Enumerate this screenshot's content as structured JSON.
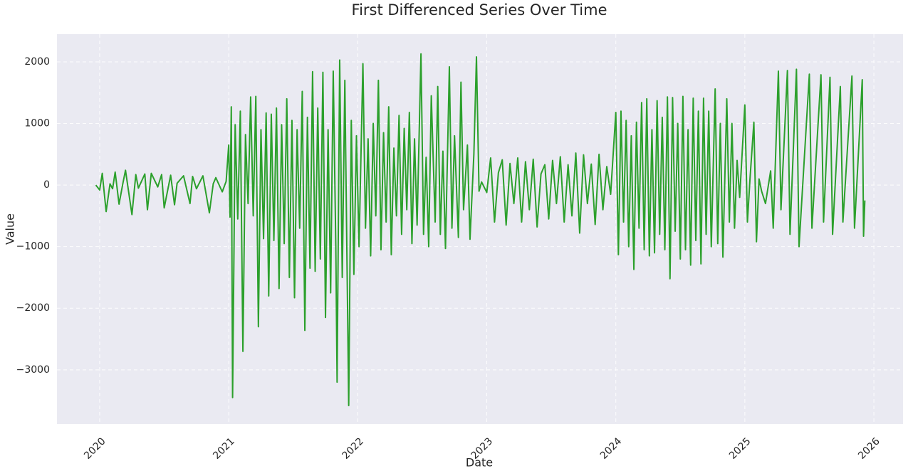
{
  "chart_data": {
    "type": "line",
    "title": "First Differenced Series Over Time",
    "x_label": "Date",
    "y_label": "Value",
    "color": "#2ca02c",
    "grid": true,
    "xlim": [
      2019.669,
      2026.226
    ],
    "xticks": [
      2020,
      2021,
      2022,
      2023,
      2024,
      2025,
      2026
    ],
    "ylim": [
      -3880,
      2450
    ],
    "yticks": [
      {
        "value": -3000,
        "label": "−3000"
      },
      {
        "value": -2000,
        "label": "−2000"
      },
      {
        "value": -1000,
        "label": "−1000"
      },
      0,
      1000,
      2000
    ],
    "x": [
      2019.97,
      2020.0,
      2020.02,
      2020.05,
      2020.08,
      2020.1,
      2020.12,
      2020.15,
      2020.18,
      2020.2,
      2020.25,
      2020.28,
      2020.3,
      2020.35,
      2020.37,
      2020.4,
      2020.45,
      2020.48,
      2020.5,
      2020.55,
      2020.58,
      2020.6,
      2020.65,
      2020.7,
      2020.72,
      2020.75,
      2020.8,
      2020.85,
      2020.88,
      2020.9,
      2020.95,
      2020.98,
      2021.0,
      2021.01,
      2021.02,
      2021.03,
      2021.05,
      2021.07,
      2021.09,
      2021.11,
      2021.13,
      2021.15,
      2021.17,
      2021.19,
      2021.21,
      2021.23,
      2021.25,
      2021.27,
      2021.29,
      2021.31,
      2021.33,
      2021.35,
      2021.37,
      2021.39,
      2021.41,
      2021.43,
      2021.45,
      2021.47,
      2021.49,
      2021.51,
      2021.53,
      2021.55,
      2021.57,
      2021.59,
      2021.61,
      2021.63,
      2021.65,
      2021.67,
      2021.69,
      2021.71,
      2021.73,
      2021.75,
      2021.77,
      2021.79,
      2021.81,
      2021.83,
      2021.84,
      2021.86,
      2021.88,
      2021.9,
      2021.93,
      2021.95,
      2021.97,
      2021.99,
      2022.01,
      2022.04,
      2022.06,
      2022.08,
      2022.1,
      2022.12,
      2022.14,
      2022.16,
      2022.18,
      2022.2,
      2022.22,
      2022.24,
      2022.26,
      2022.28,
      2022.3,
      2022.32,
      2022.34,
      2022.36,
      2022.38,
      2022.4,
      2022.42,
      2022.44,
      2022.46,
      2022.49,
      2022.51,
      2022.53,
      2022.55,
      2022.57,
      2022.6,
      2022.62,
      2022.64,
      2022.66,
      2022.68,
      2022.71,
      2022.73,
      2022.75,
      2022.78,
      2022.8,
      2022.82,
      2022.85,
      2022.87,
      2022.9,
      2022.92,
      2022.94,
      2022.96,
      2023.0,
      2023.03,
      2023.06,
      2023.09,
      2023.12,
      2023.15,
      2023.18,
      2023.21,
      2023.24,
      2023.27,
      2023.3,
      2023.33,
      2023.36,
      2023.39,
      2023.42,
      2023.45,
      2023.48,
      2023.51,
      2023.54,
      2023.57,
      2023.6,
      2023.63,
      2023.66,
      2023.69,
      2023.72,
      2023.75,
      2023.78,
      2023.81,
      2023.84,
      2023.87,
      2023.9,
      2023.93,
      2023.96,
      2024.0,
      2024.02,
      2024.04,
      2024.06,
      2024.08,
      2024.1,
      2024.12,
      2024.14,
      2024.16,
      2024.18,
      2024.2,
      2024.22,
      2024.24,
      2024.26,
      2024.28,
      2024.3,
      2024.32,
      2024.34,
      2024.36,
      2024.38,
      2024.4,
      2024.42,
      2024.44,
      2024.46,
      2024.48,
      2024.5,
      2024.52,
      2024.54,
      2024.56,
      2024.58,
      2024.6,
      2024.62,
      2024.64,
      2024.66,
      2024.68,
      2024.7,
      2024.72,
      2024.74,
      2024.77,
      2024.79,
      2024.81,
      2024.83,
      2024.86,
      2024.88,
      2024.9,
      2024.92,
      2024.94,
      2024.96,
      2025.0,
      2025.02,
      2025.04,
      2025.07,
      2025.09,
      2025.11,
      2025.13,
      2025.16,
      2025.2,
      2025.22,
      2025.26,
      2025.28,
      2025.33,
      2025.35,
      2025.4,
      2025.42,
      2025.5,
      2025.52,
      2025.59,
      2025.61,
      2025.66,
      2025.68,
      2025.74,
      2025.76,
      2025.83,
      2025.85,
      2025.91,
      2025.92,
      2025.93
    ],
    "values": [
      0,
      -80,
      190,
      -430,
      20,
      -60,
      210,
      -310,
      30,
      240,
      -480,
      170,
      -50,
      180,
      -400,
      190,
      -30,
      170,
      -370,
      160,
      -320,
      30,
      150,
      -300,
      140,
      -60,
      150,
      -450,
      20,
      120,
      -110,
      60,
      650,
      -520,
      1270,
      -3450,
      980,
      -550,
      1200,
      -2700,
      820,
      -300,
      1430,
      -500,
      1440,
      -2300,
      900,
      -870,
      1170,
      -1800,
      1150,
      -900,
      1250,
      -1680,
      980,
      -950,
      1400,
      -1500,
      1050,
      -1830,
      900,
      -700,
      1520,
      -2360,
      1100,
      -1350,
      1840,
      -1400,
      1250,
      -1200,
      1830,
      -2150,
      900,
      -1750,
      1850,
      -1000,
      -3200,
      2030,
      -1500,
      1700,
      -3580,
      1050,
      -1450,
      800,
      -1000,
      1970,
      -700,
      750,
      -1150,
      1000,
      -500,
      1700,
      -1050,
      850,
      -600,
      1270,
      -1130,
      600,
      -500,
      1130,
      -800,
      920,
      -400,
      1180,
      -950,
      750,
      -650,
      2130,
      -800,
      450,
      -1000,
      1450,
      -600,
      1600,
      -800,
      550,
      -1030,
      1920,
      -700,
      800,
      -850,
      1670,
      -400,
      650,
      -880,
      500,
      2080,
      -100,
      50,
      -120,
      440,
      -600,
      200,
      410,
      -650,
      350,
      -300,
      440,
      -600,
      380,
      -400,
      420,
      -680,
      180,
      330,
      -550,
      400,
      -300,
      460,
      -600,
      330,
      -500,
      520,
      -780,
      490,
      -300,
      340,
      -640,
      500,
      -400,
      300,
      -150,
      1180,
      -1130,
      1200,
      -600,
      1050,
      -1000,
      800,
      -1370,
      1020,
      -700,
      1340,
      -1050,
      1400,
      -1150,
      900,
      -1100,
      1370,
      -800,
      1100,
      -1050,
      1430,
      -1520,
      1420,
      -750,
      1000,
      -1200,
      1440,
      -1050,
      900,
      -1300,
      1410,
      -900,
      1200,
      -1280,
      1410,
      -800,
      1200,
      -1000,
      1560,
      -950,
      1000,
      -1170,
      1400,
      -600,
      1000,
      -700,
      400,
      -200,
      1300,
      -600,
      100,
      1020,
      -920,
      100,
      -100,
      -300,
      230,
      -700,
      1850,
      -400,
      1860,
      -800,
      1880,
      -1000,
      1800,
      -700,
      1790,
      -600,
      1750,
      -800,
      1600,
      -600,
      1770,
      -700,
      1710,
      -830,
      -250
    ]
  }
}
